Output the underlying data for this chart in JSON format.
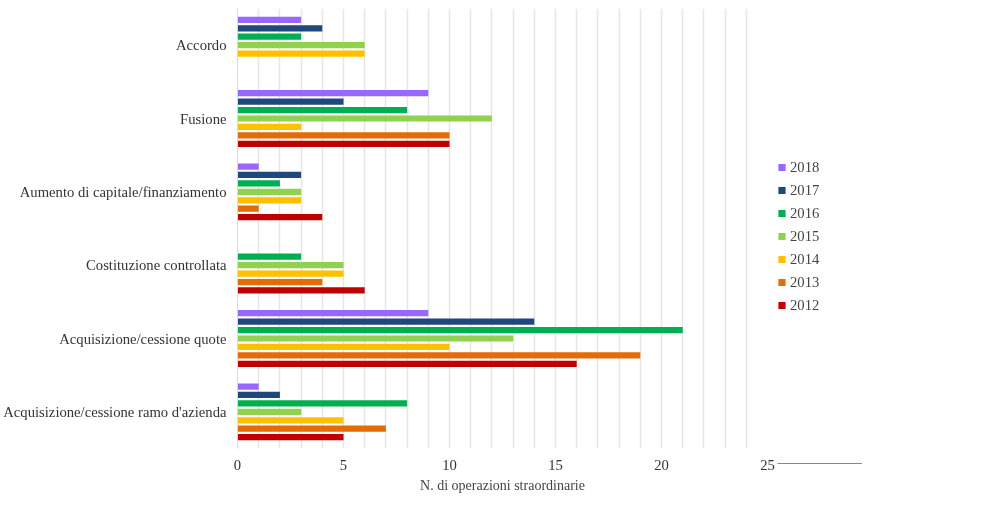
{
  "chart_data": {
    "type": "bar",
    "orientation": "horizontal",
    "xlabel": "N. di operazioni straordinarie",
    "categories": [
      "Accordo",
      "Fusione",
      "Aumento di capitale/finanziamento",
      "Costituzione controllata",
      "Acquisizione/cessione quote",
      "Acquisizione/cessione ramo d'azienda"
    ],
    "series": [
      {
        "name": "2018",
        "color": "#9966ff",
        "values": [
          3,
          9,
          1,
          null,
          9,
          1
        ]
      },
      {
        "name": "2017",
        "color": "#1f497d",
        "values": [
          4,
          5,
          3,
          null,
          14,
          2
        ]
      },
      {
        "name": "2016",
        "color": "#00b050",
        "values": [
          3,
          8,
          2,
          3,
          21,
          8
        ]
      },
      {
        "name": "2015",
        "color": "#92d050",
        "values": [
          6,
          12,
          3,
          5,
          13,
          3
        ]
      },
      {
        "name": "2014",
        "color": "#ffc000",
        "values": [
          6,
          3,
          3,
          5,
          10,
          5
        ]
      },
      {
        "name": "2013",
        "color": "#e36c09",
        "values": [
          null,
          10,
          1,
          4,
          19,
          7
        ]
      },
      {
        "name": "2012",
        "color": "#c00000",
        "values": [
          null,
          10,
          4,
          6,
          16,
          5
        ]
      }
    ],
    "xlim": [
      0,
      25
    ],
    "xticks": [
      0,
      5,
      10,
      15,
      20,
      25
    ],
    "grid": "x",
    "legend": "right"
  }
}
